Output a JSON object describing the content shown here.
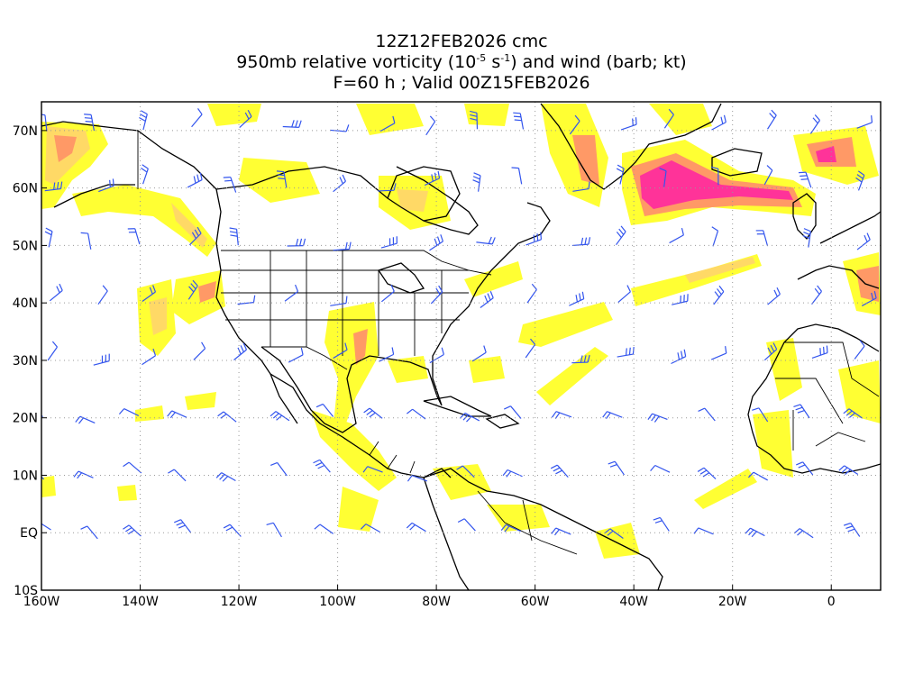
{
  "title": {
    "line1": "12Z12FEB2026 cmc",
    "line2_prefix": "950mb relative vorticity (10",
    "line2_exp1": "-5",
    "line2_mid": " s",
    "line2_exp2": "-1",
    "line2_suffix": ") and wind (barb; kt)",
    "line3": "F=60 h ; Valid 00Z15FEB2026"
  },
  "map": {
    "projection": "cylindrical equidistant",
    "lon_range": [
      -160,
      10
    ],
    "lat_range": [
      -10,
      75
    ],
    "gridlines": "dotted",
    "lon_ticks": [
      {
        "lon": -160,
        "label": "160W"
      },
      {
        "lon": -140,
        "label": "140W"
      },
      {
        "lon": -120,
        "label": "120W"
      },
      {
        "lon": -100,
        "label": "100W"
      },
      {
        "lon": -80,
        "label": "80W"
      },
      {
        "lon": -60,
        "label": "60W"
      },
      {
        "lon": -40,
        "label": "40W"
      },
      {
        "lon": -20,
        "label": "20W"
      },
      {
        "lon": 0,
        "label": "0"
      }
    ],
    "lat_ticks": [
      {
        "lat": 70,
        "label": "70N"
      },
      {
        "lat": 60,
        "label": "60N"
      },
      {
        "lat": 50,
        "label": "50N"
      },
      {
        "lat": 40,
        "label": "40N"
      },
      {
        "lat": 30,
        "label": "30N"
      },
      {
        "lat": 20,
        "label": "20N"
      },
      {
        "lat": 10,
        "label": "10N"
      },
      {
        "lat": 0,
        "label": "EQ"
      },
      {
        "lat": -10,
        "label": "10S"
      }
    ],
    "colors": {
      "shade_low": "#ffff33",
      "shade_mid": "#ffd966",
      "shade_high": "#ff9966",
      "shade_max": "#ff3399",
      "barb": "#3355ee",
      "coast": "#000000",
      "grid": "#999999"
    }
  }
}
